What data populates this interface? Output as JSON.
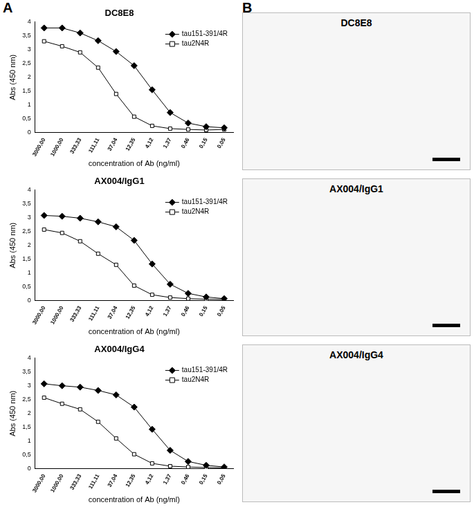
{
  "panel_labels": [
    "A",
    "B"
  ],
  "chart_data": [
    {
      "type": "line",
      "title": "DC8E8",
      "x_label": "concentration of Ab (ng/ml)",
      "y_label": "Abs (450 nm)",
      "categories": [
        "3000,00",
        "1000,00",
        "333,33",
        "111,11",
        "37,04",
        "12,35",
        "4,12",
        "1,37",
        "0,46",
        "0,15",
        "0,05"
      ],
      "series": [
        {
          "name": "tau151-391/4R",
          "color": "#000000",
          "marker": "diamond",
          "values": [
            3.78,
            3.78,
            3.6,
            3.32,
            2.93,
            2.42,
            1.55,
            0.73,
            0.35,
            0.22,
            0.18
          ]
        },
        {
          "name": "tau2N4R",
          "color": "#000000",
          "marker": "open_square",
          "values": [
            3.3,
            3.12,
            2.9,
            2.35,
            1.4,
            0.58,
            0.25,
            0.15,
            0.12,
            0.1,
            0.12
          ]
        }
      ],
      "ylim": [
        0,
        4
      ],
      "yticks": [
        0,
        {
          "value": 0.5,
          "label": "0,5"
        },
        1,
        {
          "value": 1.5,
          "label": "1,5"
        },
        2,
        {
          "value": 2.5,
          "label": "2,5"
        },
        3,
        {
          "value": 3.5,
          "label": "3,5"
        },
        4
      ],
      "grid": false,
      "legend": "upper right"
    },
    {
      "type": "line",
      "title": "AX004/IgG1",
      "x_label": "concentration of Ab (ng/ml)",
      "y_label": "Abs (450 nm)",
      "categories": [
        "3000,00",
        "1000,00",
        "333,33",
        "111,11",
        "37,04",
        "12,35",
        "4,12",
        "1,37",
        "0,46",
        "0,15",
        "0,05"
      ],
      "series": [
        {
          "name": "tau151-391/4R",
          "color": "#000000",
          "marker": "diamond",
          "values": [
            3.08,
            3.05,
            2.98,
            2.85,
            2.67,
            2.18,
            1.33,
            0.6,
            0.27,
            0.14,
            0.08
          ]
        },
        {
          "name": "tau2N4R",
          "color": "#000000",
          "marker": "open_square",
          "values": [
            2.57,
            2.45,
            2.15,
            1.7,
            1.3,
            0.55,
            0.22,
            0.12,
            0.08,
            0.06,
            0.05
          ]
        }
      ],
      "ylim": [
        0,
        4
      ],
      "yticks": [
        0,
        {
          "value": 0.5,
          "label": "0,5"
        },
        1,
        {
          "value": 1.5,
          "label": "1,5"
        },
        2,
        {
          "value": 2.5,
          "label": "2,5"
        },
        3,
        {
          "value": 3.5,
          "label": "3,5"
        },
        4
      ],
      "grid": false,
      "legend": "upper right"
    },
    {
      "type": "line",
      "title": "AX004/IgG4",
      "x_label": "concentration of Ab (ng/ml)",
      "y_label": "Abs (450 nm)",
      "categories": [
        "3000,00",
        "1000,00",
        "333,33",
        "111,11",
        "37,04",
        "12,35",
        "4,12",
        "1,37",
        "0,46",
        "0,15",
        "0,05"
      ],
      "series": [
        {
          "name": "tau151-391/4R",
          "color": "#000000",
          "marker": "diamond",
          "values": [
            3.07,
            3.0,
            2.95,
            2.83,
            2.67,
            2.23,
            1.43,
            0.67,
            0.27,
            0.13,
            0.07
          ]
        },
        {
          "name": "tau2N4R",
          "color": "#000000",
          "marker": "open_square",
          "values": [
            2.57,
            2.35,
            2.15,
            1.7,
            1.1,
            0.53,
            0.2,
            0.1,
            0.07,
            0.05,
            0.04
          ]
        }
      ],
      "ylim": [
        0,
        4
      ],
      "yticks": [
        0,
        {
          "value": 0.5,
          "label": "0,5"
        },
        1,
        {
          "value": 1.5,
          "label": "1,5"
        },
        2,
        {
          "value": 2.5,
          "label": "2,5"
        },
        3,
        {
          "value": 3.5,
          "label": "3,5"
        },
        4
      ],
      "grid": false,
      "legend": "upper right"
    }
  ],
  "images": [
    {
      "title": "DC8E8"
    },
    {
      "title": "AX004/IgG1"
    },
    {
      "title": "AX004/IgG4"
    }
  ]
}
